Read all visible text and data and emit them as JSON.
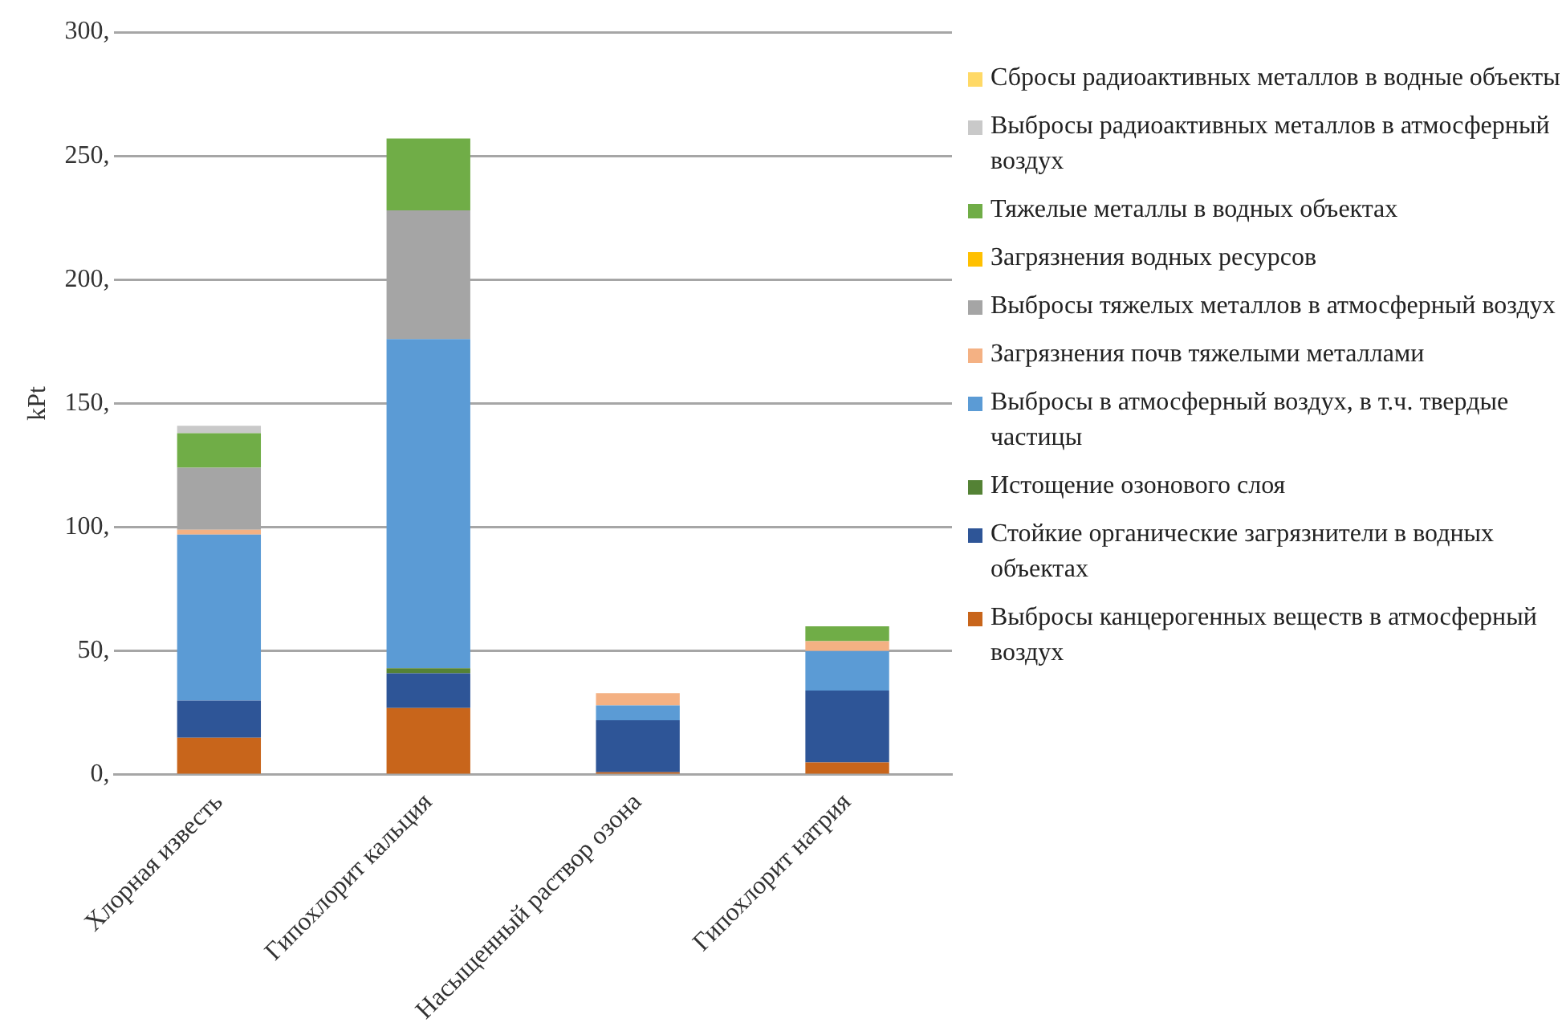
{
  "chart_data": {
    "type": "bar",
    "stacked": true,
    "ylabel": "kPt",
    "categories": [
      "Хлорная известь",
      "Гипохлорит кальция",
      "Насыщенный раствор озона",
      "Гипохлорит натрия"
    ],
    "series": [
      {
        "name": "Выбросы канцерогенных веществ в атмосферный воздух",
        "color": "#c8651b",
        "values": [
          15,
          27,
          1,
          5
        ]
      },
      {
        "name": "Стойкие органические загрязнители в водных объектах",
        "color": "#2e5597",
        "values": [
          15,
          14,
          21,
          29
        ]
      },
      {
        "name": "Истощение озонового слоя",
        "color": "#548235",
        "values": [
          0,
          2,
          0,
          0
        ]
      },
      {
        "name": "Выбросы в атмосферный воздух, в т.ч. твердые частицы",
        "color": "#5b9bd5",
        "values": [
          67,
          133,
          6,
          16
        ]
      },
      {
        "name": "Загрязнения почв тяжелыми металлами",
        "color": "#f4b183",
        "values": [
          2,
          0,
          5,
          4
        ]
      },
      {
        "name": "Выбросы тяжелых металлов в атмосферный воздух",
        "color": "#a5a5a5",
        "values": [
          25,
          52,
          0,
          0
        ]
      },
      {
        "name": "Загрязнения водных ресурсов",
        "color": "#ffc000",
        "values": [
          0,
          0,
          0,
          0
        ]
      },
      {
        "name": "Тяжелые металлы в водных объектах",
        "color": "#70ad47",
        "values": [
          14,
          29,
          0,
          6
        ]
      },
      {
        "name": "Выбросы радиоактивных металлов в атмосферный воздух",
        "color": "#c9c9c9",
        "values": [
          3,
          0,
          0,
          0
        ]
      },
      {
        "name": "Сбросы радиоактивных металлов в водные объекты",
        "color": "#ffd966",
        "values": [
          0,
          0,
          0,
          0
        ]
      }
    ],
    "ylim": [
      0,
      300
    ],
    "yticks": [
      {
        "value": 0,
        "label": "0,"
      },
      {
        "value": 50,
        "label": "50,"
      },
      {
        "value": 100,
        "label": "100,"
      },
      {
        "value": 150,
        "label": "150,"
      },
      {
        "value": 200,
        "label": "200,"
      },
      {
        "value": 250,
        "label": "250,"
      },
      {
        "value": 300,
        "label": "300,"
      }
    ],
    "grid": "y",
    "legend": "right"
  }
}
